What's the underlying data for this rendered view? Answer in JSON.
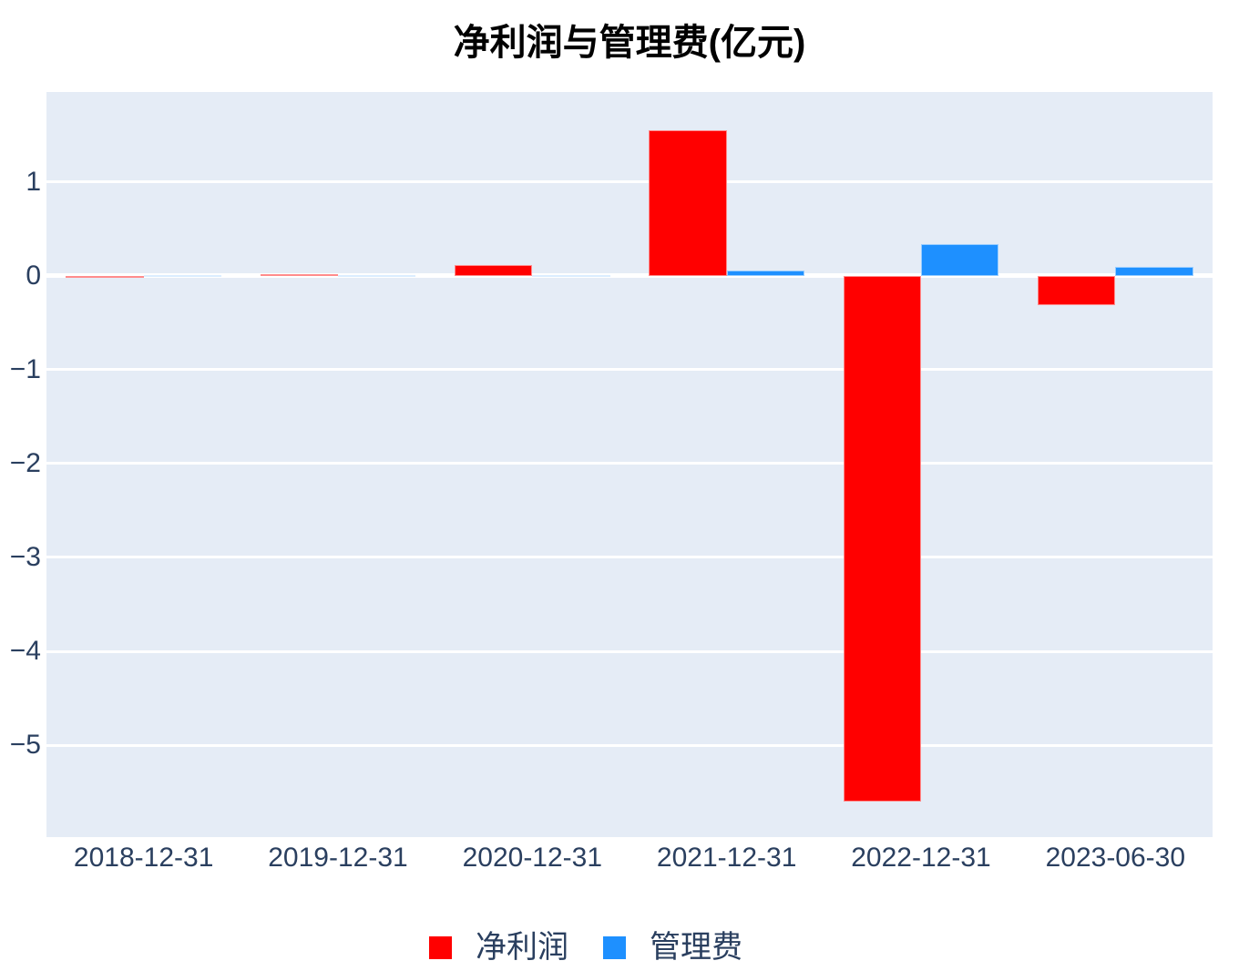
{
  "title": "净利润与管理费(亿元)",
  "colors": {
    "net_profit": "#ff0000",
    "management_fee": "#1e90ff",
    "plot_background": "#e5ecf6",
    "gridline": "#ffffff",
    "tick_text": "#2a3f5f",
    "title_text": "#000000"
  },
  "chart_data": {
    "type": "bar",
    "title": "净利润与管理费(亿元)",
    "categories": [
      "2018-12-31",
      "2019-12-31",
      "2020-12-31",
      "2021-12-31",
      "2022-12-31",
      "2023-06-30"
    ],
    "series": [
      {
        "name": "净利润",
        "color": "#ff0000",
        "values": [
          -0.02,
          0.02,
          0.12,
          1.55,
          -5.6,
          -0.31
        ]
      },
      {
        "name": "管理费",
        "color": "#1e90ff",
        "values": [
          0.005,
          0.01,
          0.01,
          0.06,
          0.34,
          0.1
        ]
      }
    ],
    "xlabel": "",
    "ylabel": "",
    "ylim": [
      -5.98,
      1.96
    ],
    "yticks": [
      1,
      0,
      -1,
      -2,
      -3,
      -4,
      -5
    ],
    "ytick_labels": [
      "1",
      "0",
      "−1",
      "−2",
      "−3",
      "−4",
      "−5"
    ],
    "grid": true,
    "legend_position": "bottom"
  },
  "legend": {
    "items": [
      {
        "label": "净利润",
        "color": "#ff0000"
      },
      {
        "label": "管理费",
        "color": "#1e90ff"
      }
    ]
  }
}
